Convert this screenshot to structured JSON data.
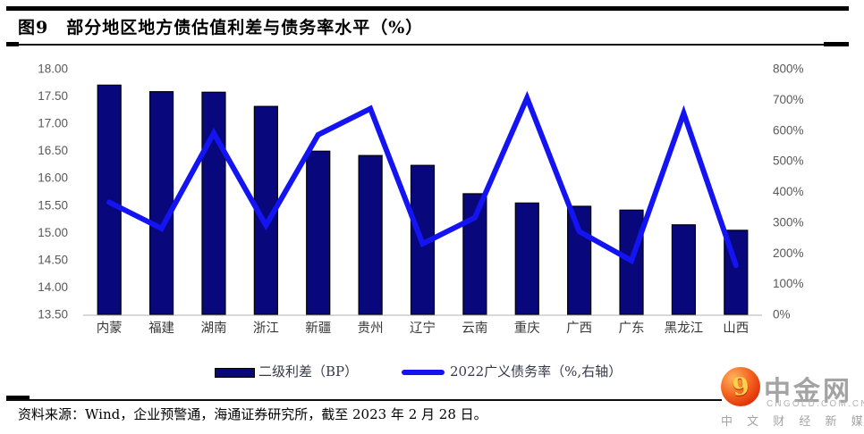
{
  "figure": {
    "title": "图9　部分地区地方债估值利差与债务率水平（%）",
    "source_note": "资料来源：Wind，企业预警通，海通证券研究所，截至 2023 年 2 月 28 日。"
  },
  "legend": {
    "bar_label": "二级利差（BP）",
    "line_label": "2022广义债务率（%,右轴）"
  },
  "logo": {
    "name": "中金网",
    "glyph": "9",
    "domain": "CNGOLD.COM.CN",
    "tagline": "中 文 财 经 新 媒 体"
  },
  "colors": {
    "bar_fill": "#08087c",
    "bar_stroke": "#000000",
    "line": "#1414f2",
    "axis_text": "#595959",
    "category_text": "#38383a",
    "baseline": "#d8d8d8"
  },
  "chart_data": {
    "type": "combo-bar-line",
    "categories": [
      "内蒙",
      "福建",
      "湖南",
      "浙江",
      "新疆",
      "贵州",
      "辽宁",
      "云南",
      "重庆",
      "广西",
      "广东",
      "黑龙江",
      "山西"
    ],
    "series": [
      {
        "name": "二级利差（BP）",
        "type": "bar",
        "axis": "left",
        "values": [
          17.7,
          17.58,
          17.57,
          17.31,
          16.49,
          16.41,
          16.23,
          15.71,
          15.54,
          15.48,
          15.41,
          15.14,
          15.04
        ]
      },
      {
        "name": "2022广义债务率（%,右轴）",
        "type": "line",
        "axis": "right",
        "values": [
          365,
          280,
          590,
          290,
          585,
          670,
          230,
          315,
          705,
          270,
          175,
          655,
          160
        ]
      }
    ],
    "left_axis": {
      "min": 13.5,
      "max": 18.0,
      "step": 0.5,
      "tick_labels": [
        "18.00",
        "17.50",
        "17.00",
        "16.50",
        "16.00",
        "15.50",
        "15.00",
        "14.50",
        "14.00",
        "13.50"
      ]
    },
    "right_axis": {
      "min": 0,
      "max": 800,
      "step": 100,
      "tick_labels": [
        "800%",
        "700%",
        "600%",
        "500%",
        "400%",
        "300%",
        "200%",
        "100%",
        "0%"
      ]
    },
    "grid": false,
    "legend_position": "bottom"
  }
}
